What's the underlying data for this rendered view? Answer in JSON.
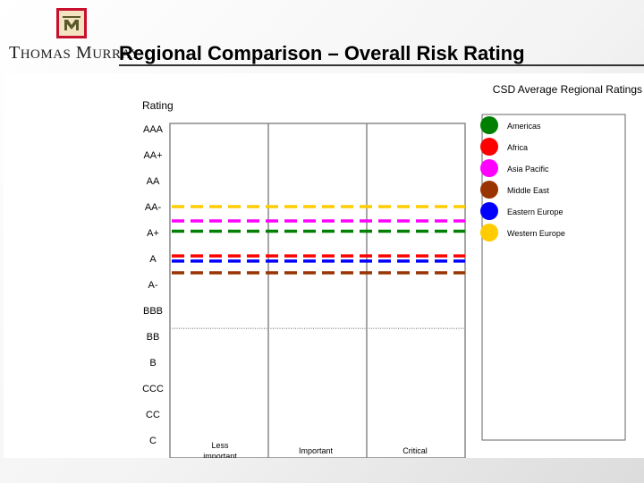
{
  "header": {
    "logo_text_caps": [
      "T",
      "M"
    ],
    "logo_text_small": [
      "HOMAS",
      "URRAY"
    ],
    "title": "Regional Comparison – Overall Risk Rating"
  },
  "chart_data": {
    "type": "line",
    "title": "CSD Average Regional Ratings",
    "ylabel": "Rating",
    "y_categories": [
      "AAA",
      "AA+",
      "AA",
      "AA-",
      "A+",
      "A",
      "A-",
      "BBB",
      "BB",
      "B",
      "CCC",
      "CC",
      "C"
    ],
    "x_categories": [
      "Less important",
      "Important",
      "Critical"
    ],
    "series": [
      {
        "name": "Western Europe",
        "color": "#ffcc00",
        "value": 3.0
      },
      {
        "name": "Asia Pacific",
        "color": "#ff00ff",
        "value": 3.55
      },
      {
        "name": "Americas",
        "color": "#008000",
        "value": 3.95
      },
      {
        "name": "Africa",
        "color": "#ff0000",
        "value": 4.9
      },
      {
        "name": "Eastern Europe",
        "color": "#0000ff",
        "value": 5.1
      },
      {
        "name": "Middle East",
        "color": "#993300",
        "value": 5.55
      }
    ],
    "legend_order": [
      "Americas",
      "Africa",
      "Asia Pacific",
      "Middle East",
      "Eastern Europe",
      "Western Europe"
    ],
    "legend_position": "right",
    "reference_line_value": 7.7
  }
}
